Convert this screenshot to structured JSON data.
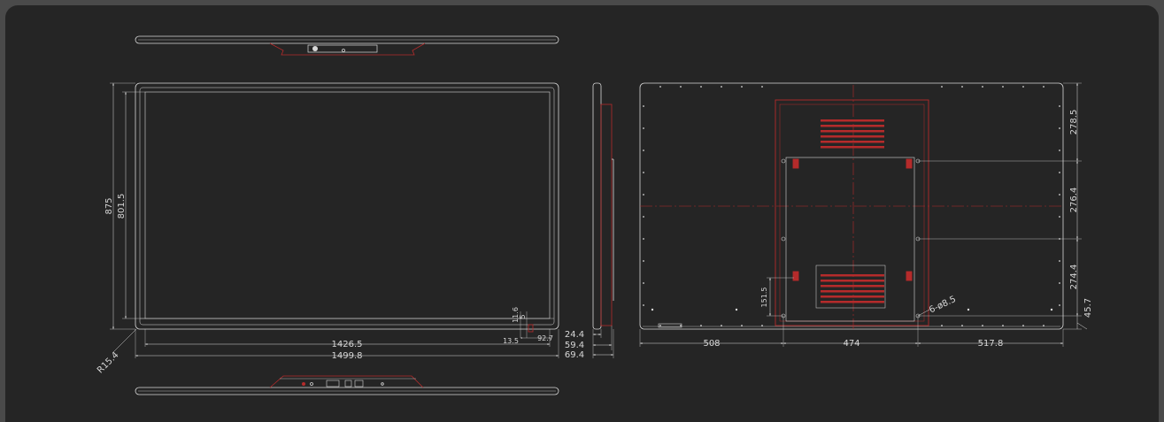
{
  "colors": {
    "line": "#d8d8d8",
    "accent": "#b52b2b",
    "background": "#252525",
    "outer": "#4a4a4a"
  },
  "front_view": {
    "height_outer": "875",
    "height_inner": "801.5",
    "corner_radius": "R15.4",
    "width_inner": "1426.5",
    "width_outer": "1499.8",
    "dim_11_6": "11.6",
    "dim_5": "5",
    "dim_13_5": "13.5",
    "dim_92_7": "92.7"
  },
  "side_view": {
    "depth_1": "24.4",
    "depth_2": "59.4",
    "depth_3": "69.4"
  },
  "back_view": {
    "vertical_1": "278.5",
    "vertical_2": "276.4",
    "vertical_3": "274.4",
    "vertical_4": "45.7",
    "bottom_left": "508",
    "bottom_mid": "474",
    "bottom_right": "517.8",
    "hole_callout": "6-ø8.5",
    "vesa_height": "151.5"
  }
}
